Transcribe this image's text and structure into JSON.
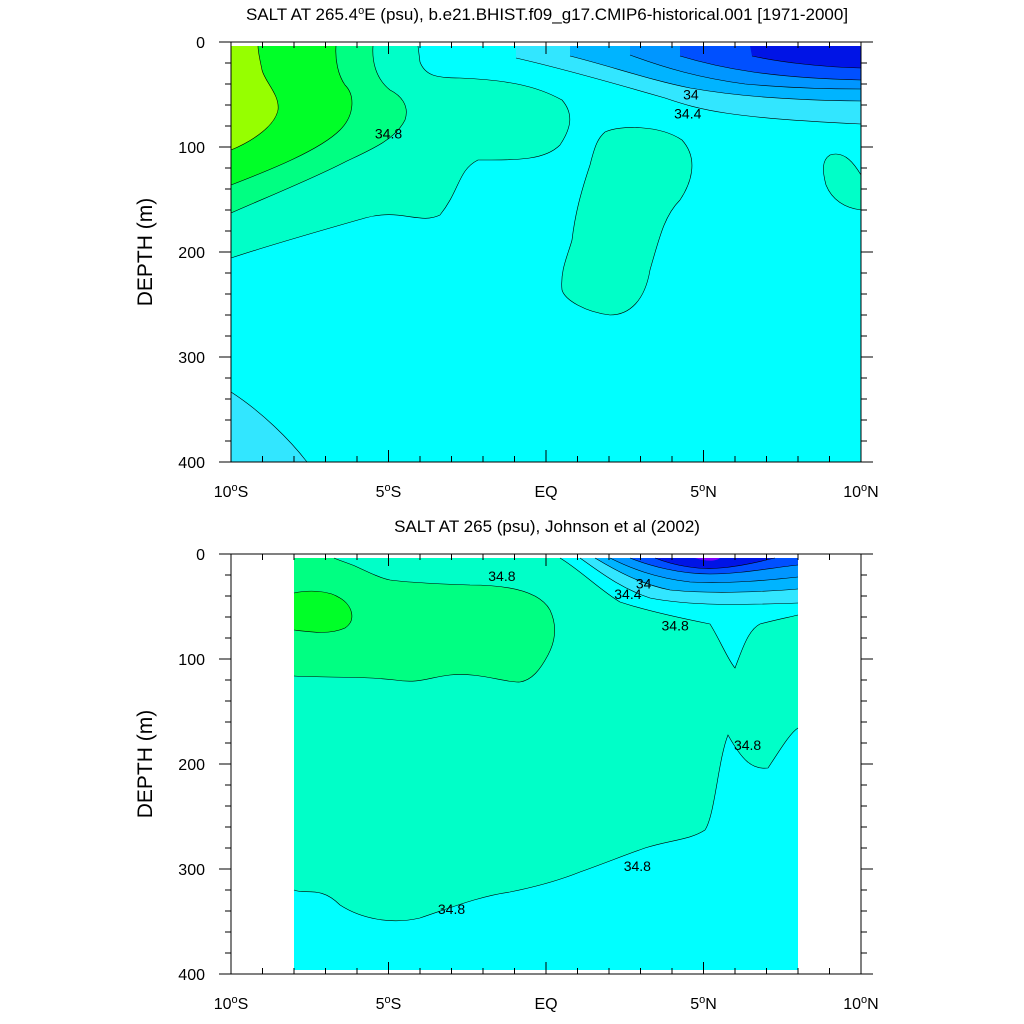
{
  "chart_data": [
    {
      "type": "contour",
      "title_prefix": "SALT AT 265.4",
      "title_sup": "o",
      "title_suffix": "E (psu), b.e21.BHIST.f09_g17.CMIP6-historical.001 [1971-2000]",
      "ylabel": "DEPTH (m)",
      "xlim": [
        -10,
        10
      ],
      "ylim": [
        0,
        400
      ],
      "y_reversed": true,
      "x_ticks": [
        {
          "value": -10,
          "num": "10",
          "sup": "o",
          "hemi": "S"
        },
        {
          "value": -5,
          "num": "5",
          "sup": "o",
          "hemi": "S"
        },
        {
          "value": 0,
          "num": "EQ",
          "sup": "",
          "hemi": ""
        },
        {
          "value": 5,
          "num": "5",
          "sup": "o",
          "hemi": "N"
        },
        {
          "value": 10,
          "num": "10",
          "sup": "o",
          "hemi": "N"
        }
      ],
      "y_ticks": [
        "0",
        "100",
        "200",
        "300",
        "400"
      ],
      "contour_labels": [
        {
          "text": "34.8",
          "lon": -5.0,
          "depth": 87
        },
        {
          "text": "34",
          "lon": 4.6,
          "depth": 50
        },
        {
          "text": "34.4",
          "lon": 4.5,
          "depth": 68
        }
      ],
      "fill_colors": {
        "max_salt": "#96ff00",
        "high": "#00ff28",
        "mid_high": "#00ff82",
        "above_34_8": "#00ffc8",
        "base": "#00ffff",
        "mid_low": "#32e6ff",
        "low": "#00b4ff",
        "lower": "#0096ff",
        "lowest": "#0050ff",
        "min_salt": "#0014e6"
      }
    },
    {
      "type": "contour",
      "title_prefix": "SALT AT 265 (psu), Johnson et al (2002)",
      "title_sup": "",
      "title_suffix": "",
      "ylabel": "DEPTH (m)",
      "xlim": [
        -10,
        10
      ],
      "ylim": [
        0,
        400
      ],
      "y_reversed": true,
      "data_extent_lon": [
        -8,
        8
      ],
      "x_ticks": [
        {
          "value": -10,
          "num": "10",
          "sup": "o",
          "hemi": "S"
        },
        {
          "value": -5,
          "num": "5",
          "sup": "o",
          "hemi": "S"
        },
        {
          "value": 0,
          "num": "EQ",
          "sup": "",
          "hemi": ""
        },
        {
          "value": 5,
          "num": "5",
          "sup": "o",
          "hemi": "N"
        },
        {
          "value": 10,
          "num": "10",
          "sup": "o",
          "hemi": "N"
        }
      ],
      "y_ticks": [
        "0",
        "100",
        "200",
        "300",
        "400"
      ],
      "contour_labels": [
        {
          "text": "34.8",
          "lon": -1.4,
          "depth": 21
        },
        {
          "text": "34",
          "lon": 3.1,
          "depth": 28
        },
        {
          "text": "34.4",
          "lon": 2.6,
          "depth": 38
        },
        {
          "text": "34.8",
          "lon": 4.1,
          "depth": 68
        },
        {
          "text": "34.8",
          "lon": 6.4,
          "depth": 182
        },
        {
          "text": "34.8",
          "lon": 2.9,
          "depth": 297
        },
        {
          "text": "34.8",
          "lon": -3.0,
          "depth": 338
        }
      ],
      "fill_colors": {
        "high": "#00ff28",
        "mid_high": "#00ff82",
        "above_34_8": "#00ffc8",
        "base": "#00ffff",
        "mid_low": "#32e6ff",
        "low": "#00b4ff",
        "lower": "#0096ff",
        "lowest": "#0050ff",
        "min_salt": "#0014e6",
        "max_spot": "#8000ff"
      }
    }
  ]
}
